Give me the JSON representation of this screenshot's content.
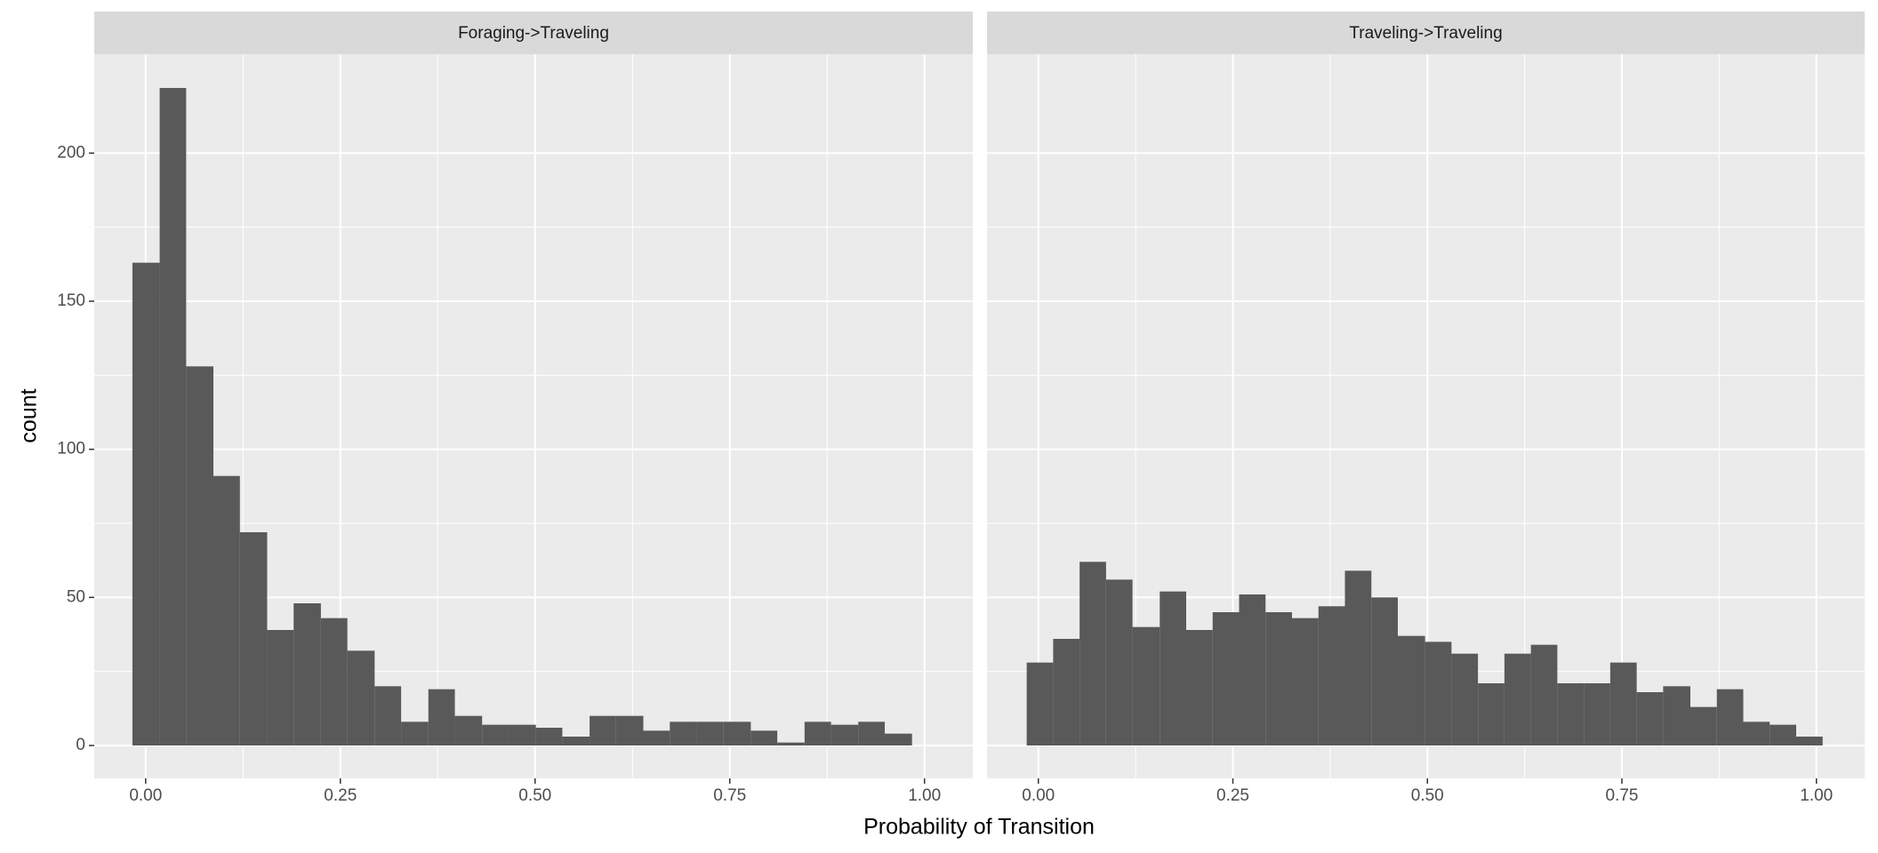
{
  "axis_labels": {
    "x": "Probability of Transition",
    "y": "count"
  },
  "chart_data": [
    {
      "type": "histogram",
      "title": "Foraging->Traveling",
      "color": "#595959",
      "bins": [
        -0.017,
        0.018,
        0.052,
        0.087,
        0.121,
        0.156,
        0.19,
        0.225,
        0.259,
        0.294,
        0.328,
        0.363,
        0.397,
        0.432,
        0.466,
        0.501,
        0.535,
        0.57,
        0.604,
        0.639,
        0.673,
        0.708,
        0.742,
        0.777,
        0.811,
        0.846,
        0.88,
        0.915,
        0.949,
        0.984
      ],
      "values": [
        163,
        222,
        128,
        91,
        72,
        39,
        48,
        43,
        32,
        20,
        8,
        19,
        10,
        7,
        7,
        6,
        3,
        10,
        10,
        5,
        8,
        8,
        8,
        5,
        1,
        8,
        7,
        8,
        4
      ],
      "xlim": [
        -0.066,
        1.062
      ],
      "ylim": [
        -11.1,
        233.4
      ],
      "xticks": [
        {
          "value": 0,
          "label": "0.00"
        },
        {
          "value": 0.25,
          "label": "0.25"
        },
        {
          "value": 0.5,
          "label": "0.50"
        },
        {
          "value": 0.75,
          "label": "0.75"
        },
        {
          "value": 1,
          "label": "1.00"
        }
      ],
      "yticks": [
        0,
        50,
        100,
        150,
        200
      ],
      "grid": true
    },
    {
      "type": "histogram",
      "title": "Traveling->Traveling",
      "color": "#595959",
      "bins": [
        -0.015,
        0.019,
        0.053,
        0.087,
        0.121,
        0.156,
        0.19,
        0.224,
        0.258,
        0.292,
        0.326,
        0.36,
        0.394,
        0.428,
        0.462,
        0.497,
        0.531,
        0.565,
        0.599,
        0.633,
        0.667,
        0.701,
        0.735,
        0.769,
        0.803,
        0.838,
        0.872,
        0.906,
        0.94,
        0.974,
        1.008
      ],
      "values": [
        28,
        36,
        62,
        56,
        40,
        52,
        39,
        45,
        51,
        45,
        43,
        47,
        59,
        50,
        37,
        35,
        31,
        21,
        31,
        34,
        21,
        21,
        28,
        18,
        20,
        13,
        19,
        8,
        7,
        3
      ],
      "xlim": [
        -0.066,
        1.062
      ],
      "ylim": [
        -11.1,
        233.4
      ],
      "xticks": [
        {
          "value": 0,
          "label": "0.00"
        },
        {
          "value": 0.25,
          "label": "0.25"
        },
        {
          "value": 0.5,
          "label": "0.50"
        },
        {
          "value": 0.75,
          "label": "0.75"
        },
        {
          "value": 1,
          "label": "1.00"
        }
      ],
      "yticks": [
        0,
        50,
        100,
        150,
        200
      ],
      "grid": true
    }
  ]
}
